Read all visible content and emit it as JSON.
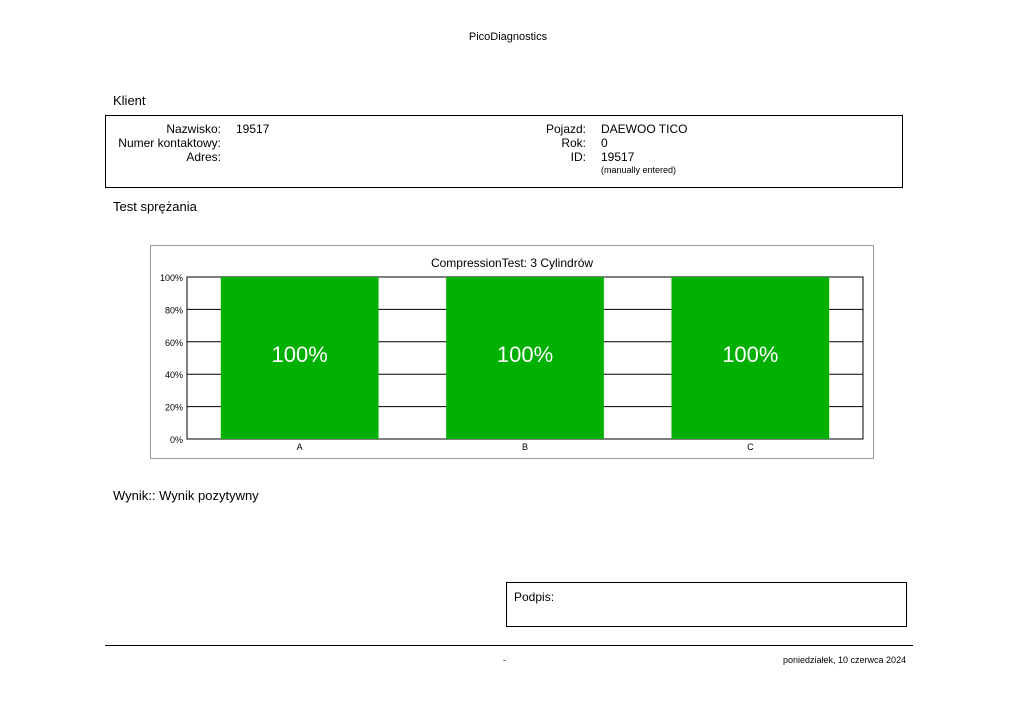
{
  "header": {
    "title": "PicoDiagnostics"
  },
  "client_section": {
    "heading": "Klient",
    "surname_label": "Nazwisko:",
    "surname_value": "19517",
    "contact_label": "Numer kontaktowy:",
    "contact_value": "",
    "address_label": "Adres:",
    "address_value": "",
    "vehicle_label": "Pojazd:",
    "vehicle_value": "DAEWOO TICO",
    "year_label": "Rok:",
    "year_value": "0",
    "id_label": "ID:",
    "id_value": "19517",
    "id_note": "(manually entered)"
  },
  "test_section": {
    "heading": "Test sprężania"
  },
  "chart_data": {
    "type": "bar",
    "title": "CompressionTest: 3 Cylindrów",
    "categories": [
      "A",
      "B",
      "C"
    ],
    "values": [
      100,
      100,
      100
    ],
    "data_labels": [
      "100%",
      "100%",
      "100%"
    ],
    "ylim": [
      0,
      100
    ],
    "yticks": [
      "0%",
      "20%",
      "40%",
      "60%",
      "80%",
      "100%"
    ],
    "grid": true,
    "bar_color": "#00b000"
  },
  "result": {
    "text": "Wynik:: Wynik pozytywny"
  },
  "signature": {
    "label": "Podpis:"
  },
  "footer": {
    "center": "-",
    "date": "poniedziałek, 10 czerwca 2024"
  }
}
